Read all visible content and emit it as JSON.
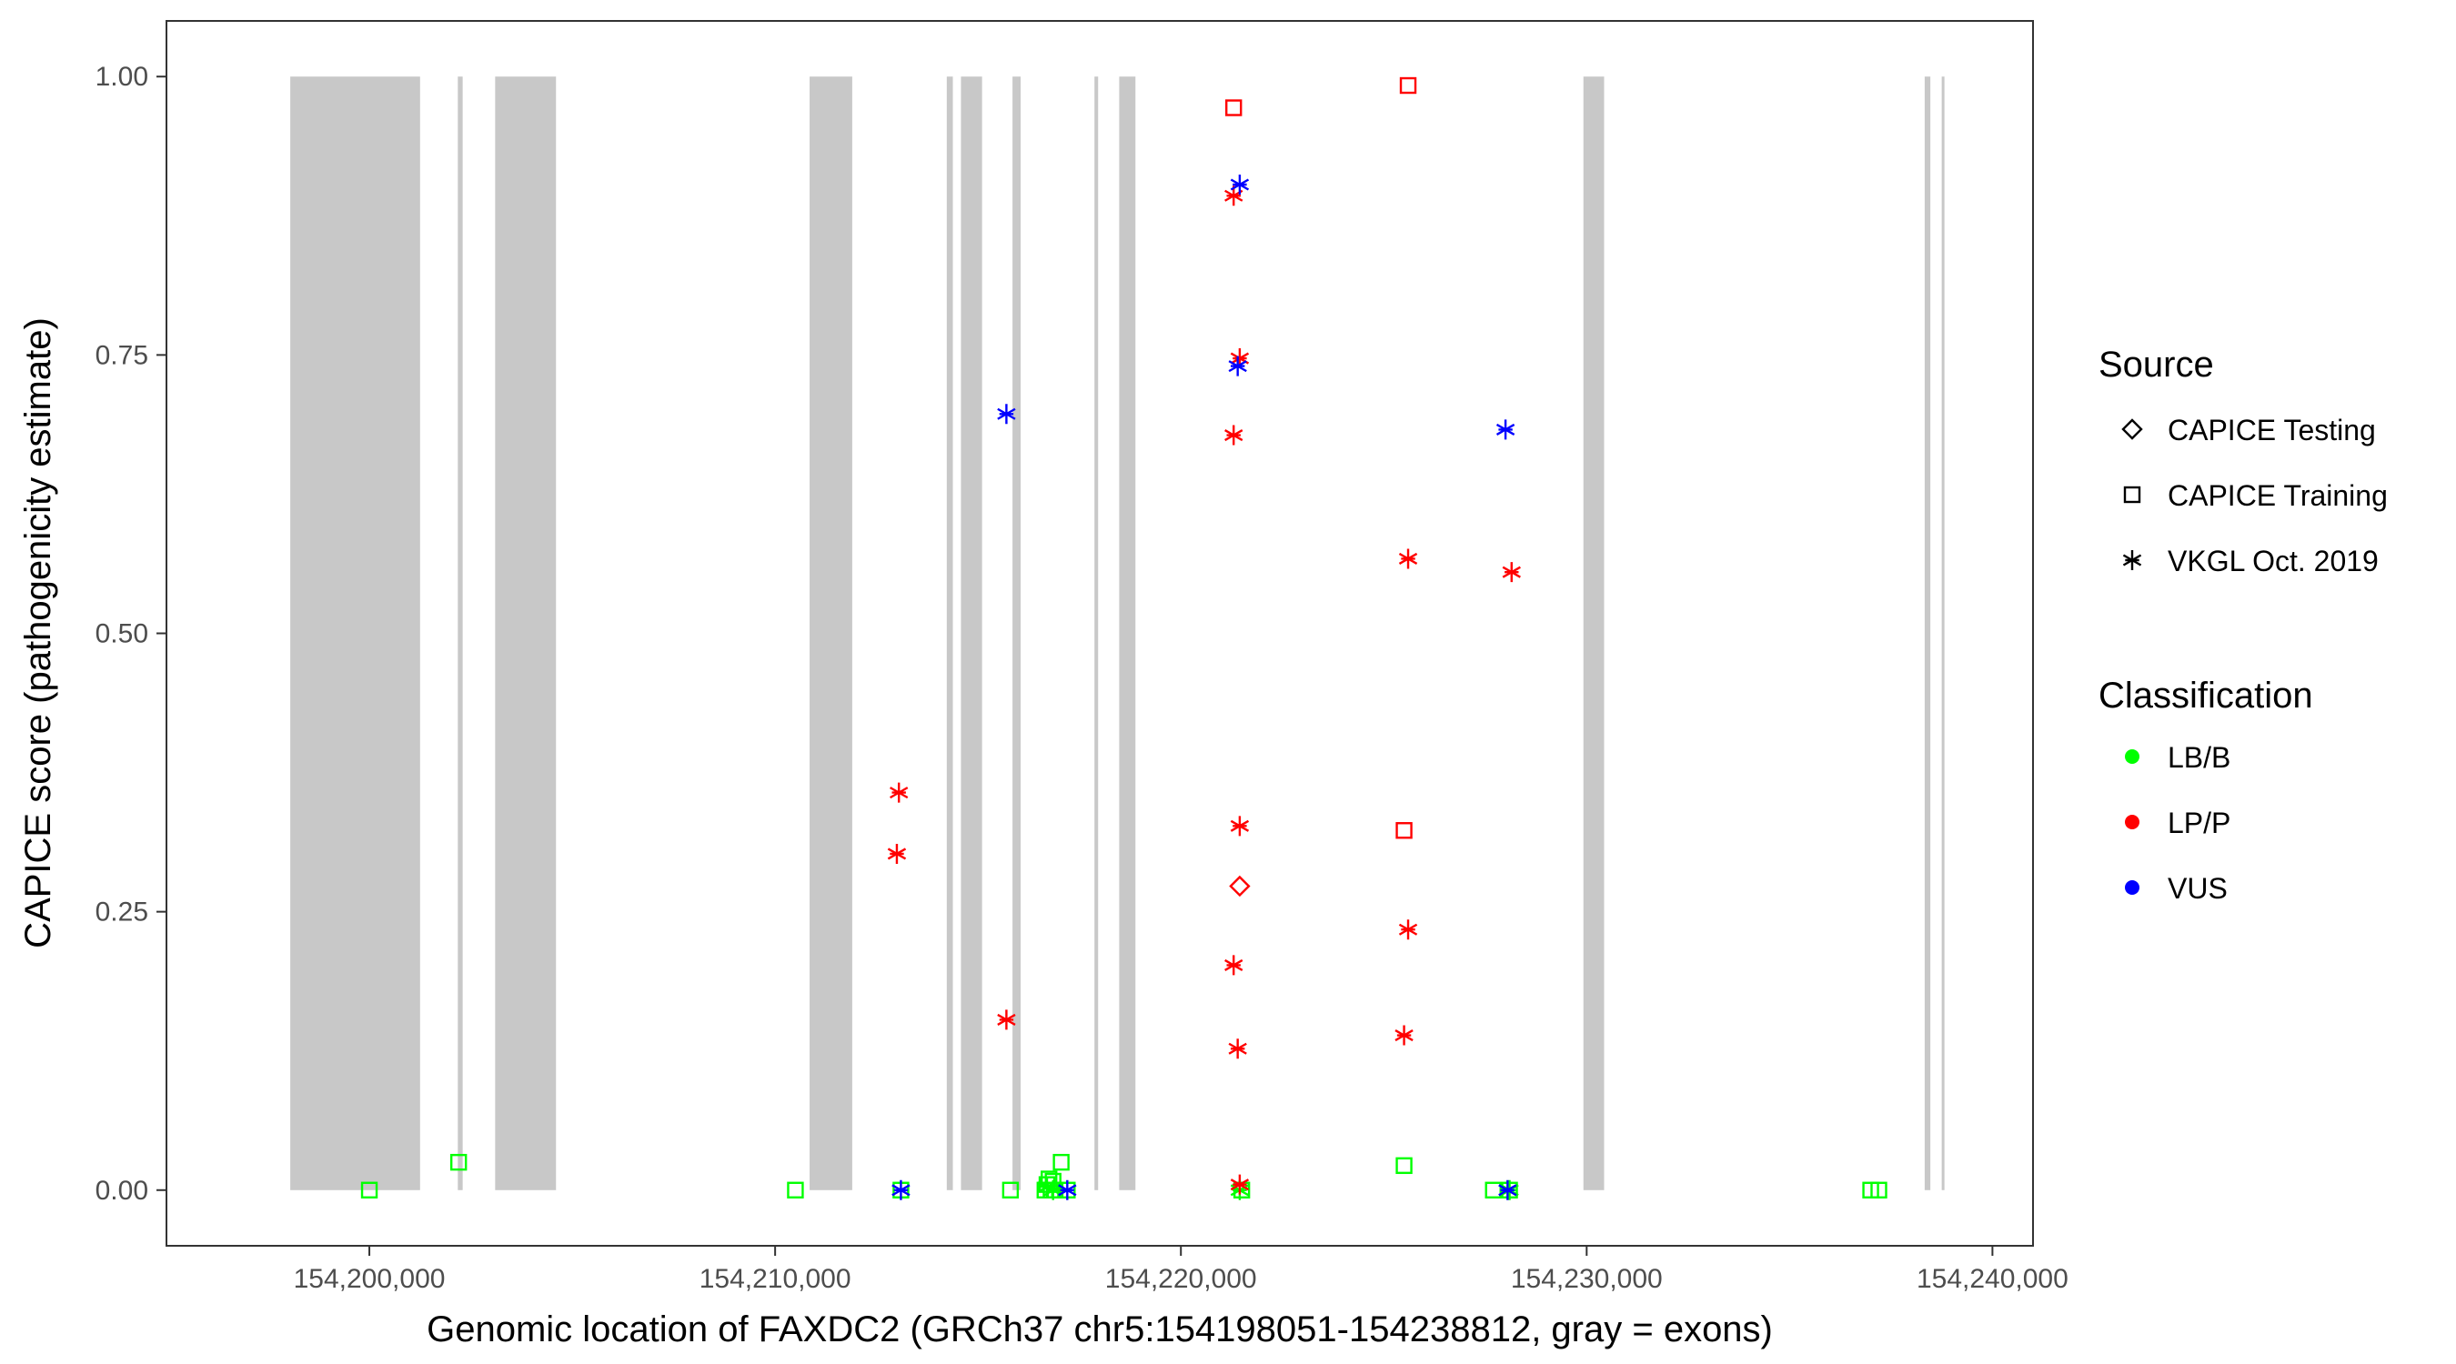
{
  "chart_data": {
    "type": "scatter",
    "xlabel": "Genomic location of FAXDC2 (GRCh37 chr5:154198051-154238812, gray = exons)",
    "ylabel": "CAPICE score (pathogenicity estimate)",
    "xlim": [
      154195000,
      154241000
    ],
    "ylim": [
      -0.05,
      1.05
    ],
    "x_ticks": [
      154200000,
      154210000,
      154220000,
      154230000,
      154240000
    ],
    "x_tick_labels": [
      "154,200,000",
      "154,210,000",
      "154,220,000",
      "154,230,000",
      "154,240,000"
    ],
    "y_ticks": [
      0,
      0.25,
      0.5,
      0.75,
      1.0
    ],
    "y_tick_labels": [
      "0.00",
      "0.25",
      "0.50",
      "0.75",
      "1.00"
    ],
    "grid": false,
    "exon_color": "#c8c8c8",
    "exons": [
      {
        "start": 154198051,
        "end": 154201250
      },
      {
        "start": 154202180,
        "end": 154202300
      },
      {
        "start": 154203100,
        "end": 154204600
      },
      {
        "start": 154210850,
        "end": 154211900
      },
      {
        "start": 154214230,
        "end": 154214380
      },
      {
        "start": 154214580,
        "end": 154215100
      },
      {
        "start": 154215850,
        "end": 154216050
      },
      {
        "start": 154217870,
        "end": 154217960
      },
      {
        "start": 154218480,
        "end": 154218880
      },
      {
        "start": 154229920,
        "end": 154230430
      },
      {
        "start": 154238330,
        "end": 154238470
      },
      {
        "start": 154238750,
        "end": 154238812
      }
    ],
    "legend": {
      "placement": "right",
      "source_title": "Source",
      "source_entries": [
        {
          "label": "CAPICE Testing",
          "shape": "diamond"
        },
        {
          "label": "CAPICE Training",
          "shape": "square"
        },
        {
          "label": "VKGL Oct. 2019",
          "shape": "asterisk"
        }
      ],
      "class_title": "Classification",
      "class_entries": [
        {
          "label": "LB/B",
          "color": "#00ff00"
        },
        {
          "label": "LP/P",
          "color": "#ff0000"
        },
        {
          "label": "VUS",
          "color": "#0000ff"
        }
      ]
    },
    "series": [
      {
        "shape": "square",
        "color": "#00ff00",
        "points": [
          {
            "x": 154200000,
            "y": 0.0
          },
          {
            "x": 154202200,
            "y": 0.025
          },
          {
            "x": 154210500,
            "y": 0.0
          },
          {
            "x": 154213100,
            "y": 0.0
          },
          {
            "x": 154215800,
            "y": 0.0
          },
          {
            "x": 154216650,
            "y": 0.0
          },
          {
            "x": 154216700,
            "y": 0.005
          },
          {
            "x": 154216750,
            "y": 0.01
          },
          {
            "x": 154216800,
            "y": 0.0
          },
          {
            "x": 154216850,
            "y": 0.008
          },
          {
            "x": 154216900,
            "y": 0.0
          },
          {
            "x": 154217050,
            "y": 0.025
          },
          {
            "x": 154217200,
            "y": 0.0
          },
          {
            "x": 154221500,
            "y": 0.0
          },
          {
            "x": 154225500,
            "y": 0.022
          },
          {
            "x": 154227700,
            "y": 0.0
          },
          {
            "x": 154228100,
            "y": 0.0
          },
          {
            "x": 154237000,
            "y": 0.0
          },
          {
            "x": 154237200,
            "y": 0.0
          }
        ]
      },
      {
        "shape": "square",
        "color": "#ff0000",
        "points": [
          {
            "x": 154221300,
            "y": 0.972
          },
          {
            "x": 154225600,
            "y": 0.992
          },
          {
            "x": 154225500,
            "y": 0.323
          }
        ]
      },
      {
        "shape": "diamond",
        "color": "#ff0000",
        "points": [
          {
            "x": 154221450,
            "y": 0.273
          }
        ]
      },
      {
        "shape": "asterisk",
        "color": "#00ff00",
        "points": [
          {
            "x": 154216700,
            "y": 0.003
          },
          {
            "x": 154216850,
            "y": 0.0
          },
          {
            "x": 154221450,
            "y": 0.0
          },
          {
            "x": 154228100,
            "y": 0.0
          }
        ]
      },
      {
        "shape": "asterisk",
        "color": "#ff0000",
        "points": [
          {
            "x": 154213050,
            "y": 0.357
          },
          {
            "x": 154213000,
            "y": 0.302
          },
          {
            "x": 154215700,
            "y": 0.153
          },
          {
            "x": 154221300,
            "y": 0.893
          },
          {
            "x": 154221450,
            "y": 0.747
          },
          {
            "x": 154221300,
            "y": 0.678
          },
          {
            "x": 154221450,
            "y": 0.327
          },
          {
            "x": 154221300,
            "y": 0.202
          },
          {
            "x": 154221400,
            "y": 0.127
          },
          {
            "x": 154221450,
            "y": 0.005
          },
          {
            "x": 154225600,
            "y": 0.567
          },
          {
            "x": 154225600,
            "y": 0.234
          },
          {
            "x": 154225500,
            "y": 0.139
          },
          {
            "x": 154228150,
            "y": 0.555
          }
        ]
      },
      {
        "shape": "asterisk",
        "color": "#0000ff",
        "points": [
          {
            "x": 154213100,
            "y": 0.0
          },
          {
            "x": 154215700,
            "y": 0.697
          },
          {
            "x": 154217200,
            "y": 0.0
          },
          {
            "x": 154221450,
            "y": 0.903
          },
          {
            "x": 154221400,
            "y": 0.74
          },
          {
            "x": 154228000,
            "y": 0.683
          },
          {
            "x": 154228050,
            "y": 0.0
          }
        ]
      }
    ]
  }
}
